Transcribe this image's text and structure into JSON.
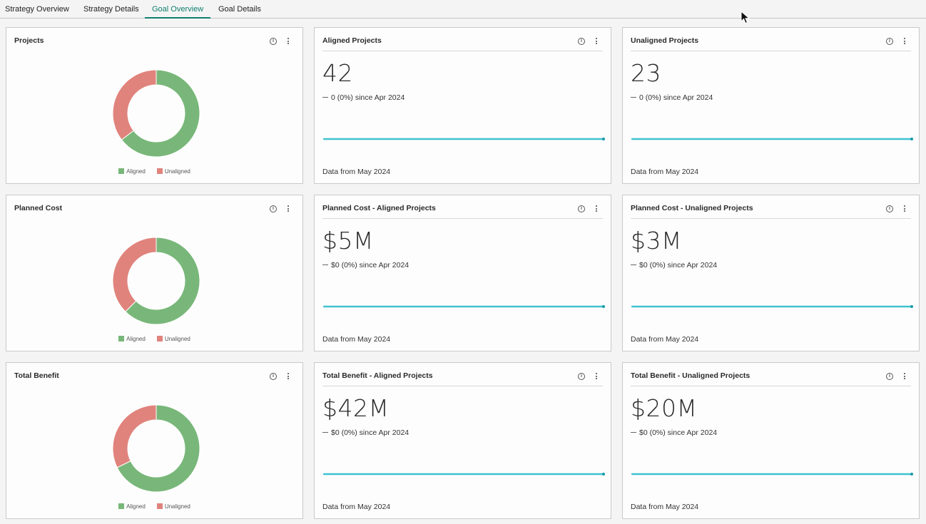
{
  "tabs": [
    {
      "label": "Strategy Overview",
      "active": false
    },
    {
      "label": "Strategy Details",
      "active": false
    },
    {
      "label": "Goal Overview",
      "active": true
    },
    {
      "label": "Goal Details",
      "active": false
    }
  ],
  "colors": {
    "aligned": "#78b779",
    "unaligned": "#e0837c",
    "sparkline": "#1fb8c9",
    "active_tab": "#0f7f6f"
  },
  "legend": {
    "aligned": "Aligned",
    "unaligned": "Unaligned"
  },
  "rows": [
    {
      "donut": {
        "title": "Projects",
        "aligned": 42,
        "unaligned": 23
      },
      "kpis": [
        {
          "title": "Aligned Projects",
          "value": "42",
          "delta": "0 (0%) since Apr 2024",
          "footer": "Data from May 2024"
        },
        {
          "title": "Unaligned Projects",
          "value": "23",
          "delta": "0 (0%) since Apr 2024",
          "footer": "Data from May 2024"
        }
      ]
    },
    {
      "donut": {
        "title": "Planned Cost",
        "aligned": 5,
        "unaligned": 3
      },
      "kpis": [
        {
          "title": "Planned Cost - Aligned Projects",
          "value": "$5M",
          "delta": "$0 (0%) since Apr 2024",
          "footer": "Data from May 2024"
        },
        {
          "title": "Planned Cost - Unaligned Projects",
          "value": "$3M",
          "delta": "$0 (0%) since Apr 2024",
          "footer": "Data from May 2024"
        }
      ]
    },
    {
      "donut": {
        "title": "Total Benefit",
        "aligned": 42,
        "unaligned": 20
      },
      "kpis": [
        {
          "title": "Total Benefit - Aligned Projects",
          "value": "$42M",
          "delta": "$0 (0%) since Apr 2024",
          "footer": "Data from May 2024"
        },
        {
          "title": "Total Benefit - Unaligned Projects",
          "value": "$20M",
          "delta": "$0 (0%) since Apr 2024",
          "footer": "Data from May 2024"
        }
      ]
    }
  ],
  "icons": {
    "info": "info-circle-icon",
    "more": "more-vertical-icon",
    "cursor": "mouse-pointer-icon"
  }
}
